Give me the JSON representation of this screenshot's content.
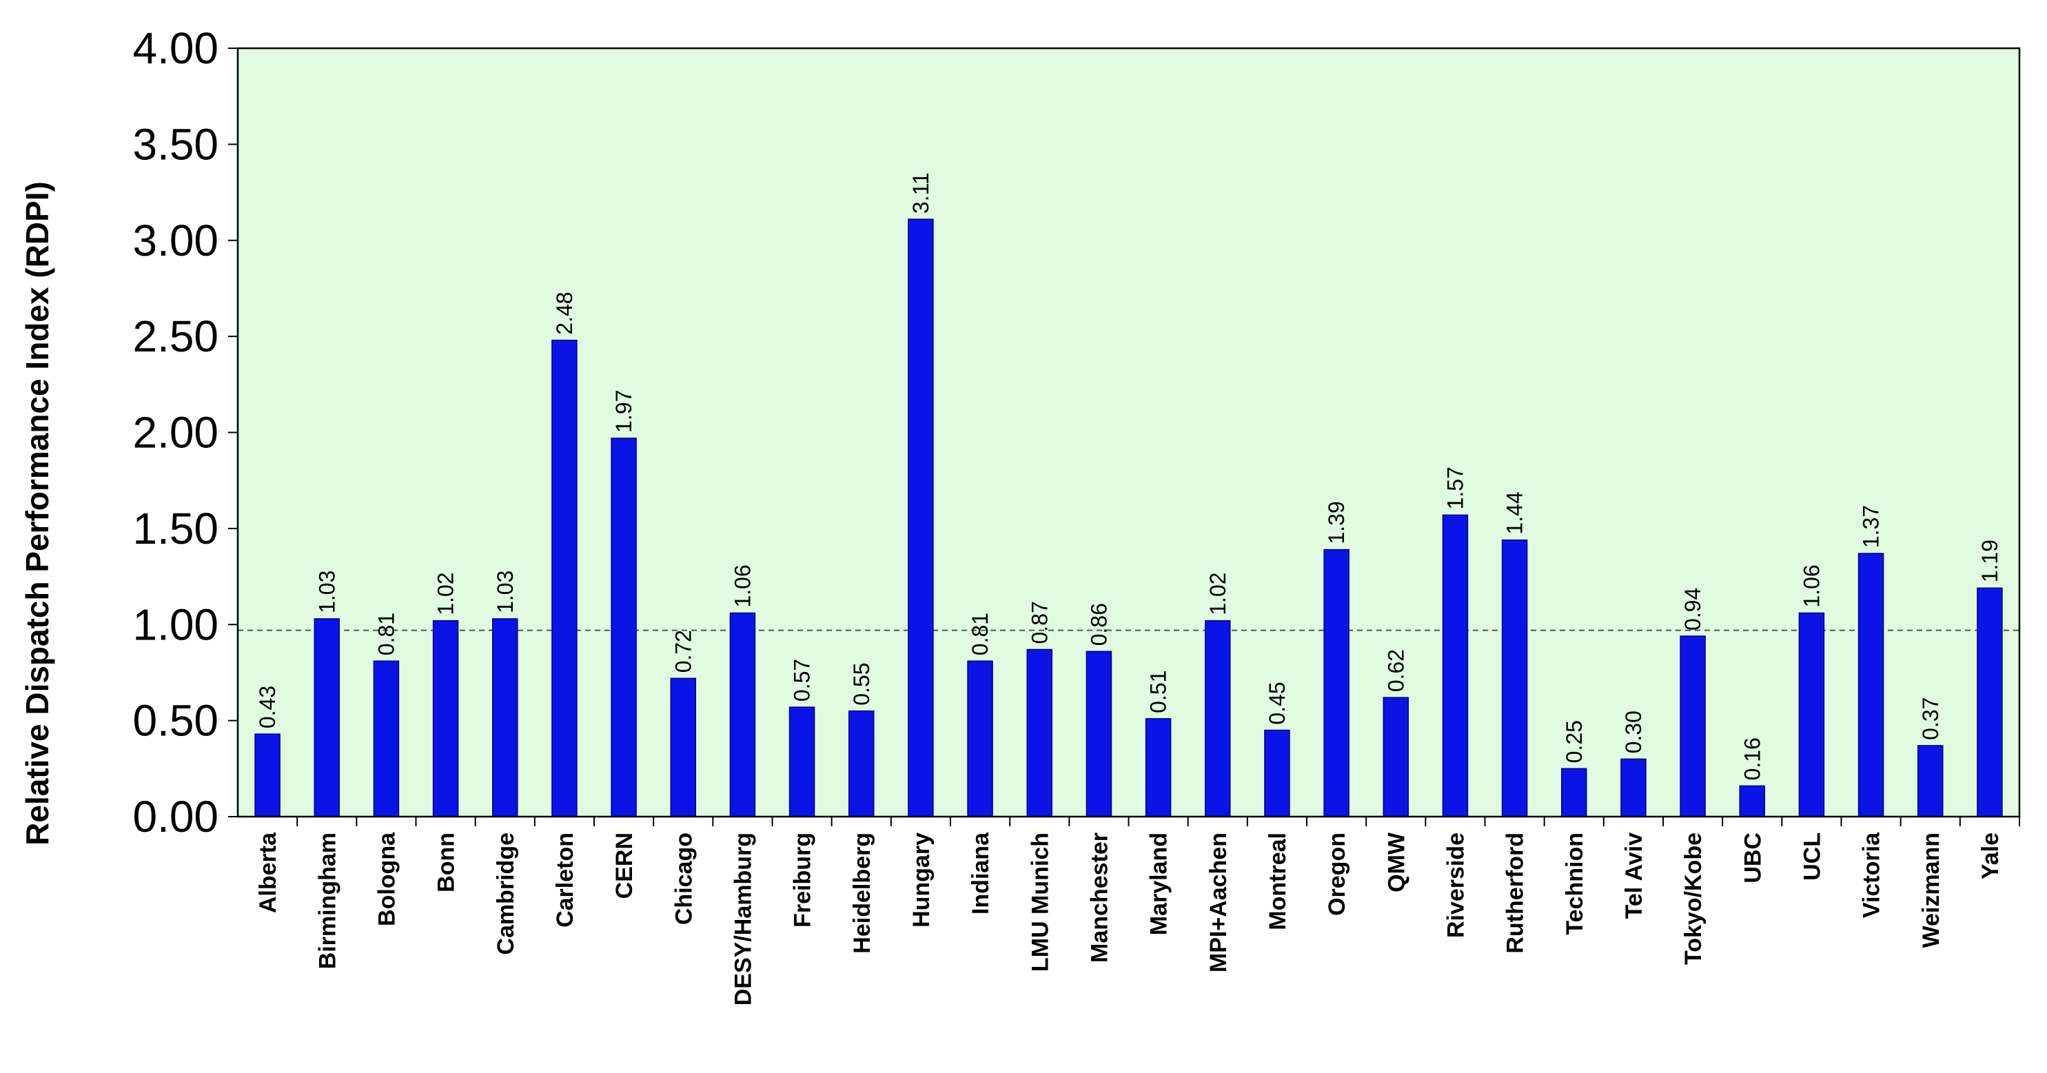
{
  "chart_data": {
    "type": "bar",
    "ylabel": "Relative Dispatch Performance Index (RDPI)",
    "xlabel": "",
    "title": "",
    "ylim": [
      0,
      4
    ],
    "yticks": [
      "0.00",
      "0.50",
      "1.00",
      "1.50",
      "2.00",
      "2.50",
      "3.00",
      "3.50",
      "4.00"
    ],
    "reference_line": 0.97,
    "grid": false,
    "categories": [
      "Alberta",
      "Birmingham",
      "Bologna",
      "Bonn",
      "Cambridge",
      "Carleton",
      "CERN",
      "Chicago",
      "DESY/Hamburg",
      "Freiburg",
      "Heidelberg",
      "Hungary",
      "Indiana",
      "LMU Munich",
      "Manchester",
      "Maryland",
      "MPI+Aachen",
      "Montreal",
      "Oregon",
      "QMW",
      "Riverside",
      "Rutherford",
      "Technion",
      "Tel Aviv",
      "Tokyo/Kobe",
      "UBC",
      "UCL",
      "Victoria",
      "Weizmann",
      "Yale"
    ],
    "values": [
      0.43,
      1.03,
      0.81,
      1.02,
      1.03,
      2.48,
      1.97,
      0.72,
      1.06,
      0.57,
      0.55,
      3.11,
      0.81,
      0.87,
      0.86,
      0.51,
      1.02,
      0.45,
      1.39,
      0.62,
      1.57,
      1.44,
      0.25,
      0.3,
      0.94,
      0.16,
      1.06,
      1.37,
      0.37,
      1.19
    ],
    "labels": [
      "0.43",
      "1.03",
      "0.81",
      "1.02",
      "1.03",
      "2.48",
      "1.97",
      "0.72",
      "1.06",
      "0.57",
      "0.55",
      "3.11",
      "0.81",
      "0.87",
      "0.86",
      "0.51",
      "1.02",
      "0.45",
      "1.39",
      "0.62",
      "1.57",
      "1.44",
      "0.25",
      "0.30",
      "0.94",
      "0.16",
      "1.06",
      "1.37",
      "0.37",
      "1.19"
    ],
    "colors": {
      "plot_bg": "#e0fbe0",
      "bar_fill": "#0a14e6",
      "bar_stroke": "#00008b",
      "axis": "#000000",
      "reference_line": "#555555"
    }
  }
}
